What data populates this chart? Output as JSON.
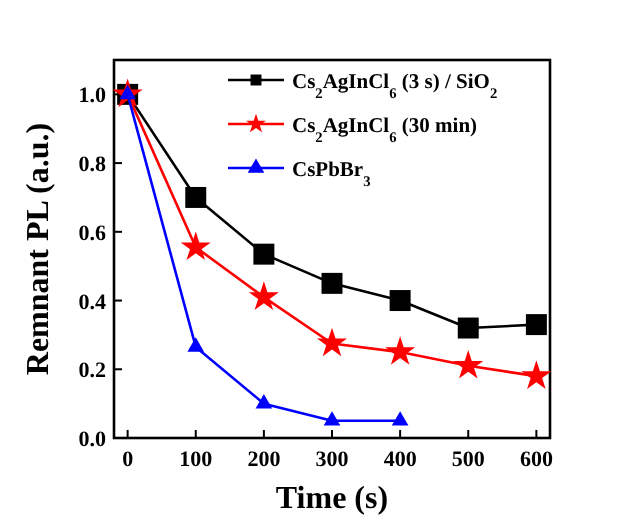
{
  "chart_data": {
    "type": "line",
    "xlabel": "Time (s)",
    "ylabel": "Remnant PL (a.u.)",
    "xlim": [
      -20,
      620
    ],
    "ylim": [
      0,
      1.1
    ],
    "xticks": [
      0,
      100,
      200,
      300,
      400,
      500,
      600
    ],
    "yticks": [
      {
        "value": 0,
        "label": "0.0"
      },
      {
        "value": 0.2,
        "label": "0.2"
      },
      {
        "value": 0.4,
        "label": "0.4"
      },
      {
        "value": 0.6,
        "label": "0.6"
      },
      {
        "value": 0.8,
        "label": "0.8"
      },
      {
        "value": 1,
        "label": "1.0"
      }
    ],
    "legend": "top right",
    "line_style": "solid",
    "grid": false,
    "series": [
      {
        "name": "Cs$_{2}$AgInCl$_{6}$ (3 s) / SiO$_{2}$",
        "color": "#000000",
        "marker": "square",
        "x": [
          0,
          100,
          200,
          300,
          400,
          500,
          600
        ],
        "values": [
          1.0,
          0.7,
          0.535,
          0.45,
          0.4,
          0.32,
          0.33
        ]
      },
      {
        "name": "Cs$_{2}$AgInCl$_{6}$ (30 min)",
        "color": "#ff0000",
        "marker": "star",
        "x": [
          0,
          100,
          200,
          300,
          400,
          500,
          600
        ],
        "values": [
          1.0,
          0.555,
          0.41,
          0.275,
          0.25,
          0.21,
          0.18
        ]
      },
      {
        "name": "CsPbBr$_{3}$",
        "color": "#0000ff",
        "marker": "triangle",
        "x": [
          0,
          100,
          200,
          300,
          400
        ],
        "values": [
          1.0,
          0.265,
          0.1,
          0.05,
          0.05
        ]
      }
    ]
  }
}
